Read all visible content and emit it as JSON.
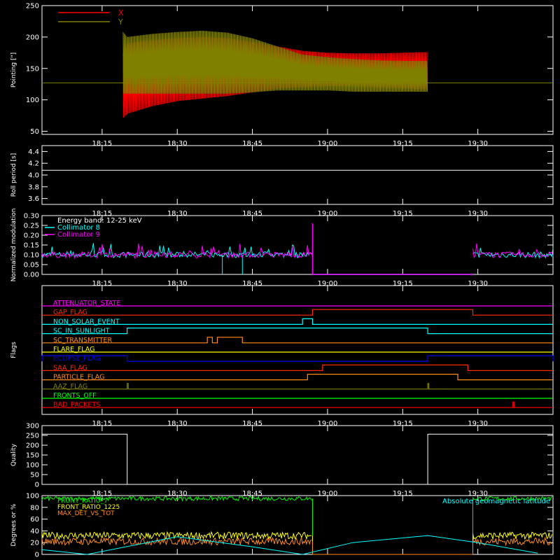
{
  "x_ticks": [
    "18:15",
    "18:30",
    "18:45",
    "19:00",
    "19:15",
    "19:30"
  ],
  "chart_data": [
    {
      "type": "line",
      "ylabel": "Pointing [\"]",
      "yticks": [
        "50",
        "100",
        "150",
        "200",
        "250"
      ],
      "ylim": [
        45,
        250
      ],
      "xlim": [
        "18:03",
        "19:45"
      ],
      "legend": [
        "X",
        "Y"
      ],
      "colors": {
        "X": "#ff0000",
        "Y": "#808000"
      },
      "series": [
        {
          "name": "X",
          "x": [
            "18:19",
            "18:20",
            "18:25",
            "18:30",
            "18:35",
            "18:40",
            "18:45",
            "18:50",
            "18:55",
            "19:00",
            "19:05",
            "19:10",
            "19:15",
            "19:20"
          ],
          "upper": [
            170,
            190,
            195,
            198,
            200,
            198,
            192,
            185,
            178,
            175,
            174,
            174,
            175,
            176
          ],
          "lower": [
            70,
            78,
            90,
            98,
            102,
            106,
            112,
            118,
            120,
            122,
            122,
            120,
            118,
            117
          ]
        },
        {
          "name": "Y",
          "x": [
            "18:19",
            "18:20",
            "18:25",
            "18:30",
            "18:35",
            "18:40",
            "18:45",
            "18:50",
            "18:55",
            "19:00",
            "19:05",
            "19:10",
            "19:15",
            "19:20"
          ],
          "upper": [
            210,
            200,
            205,
            208,
            210,
            207,
            198,
            185,
            172,
            168,
            165,
            163,
            162,
            162
          ],
          "lower": [
            110,
            110,
            110,
            110,
            110,
            110,
            112,
            115,
            115,
            115,
            113,
            113,
            113,
            113
          ]
        }
      ],
      "reference_y": 127
    },
    {
      "type": "line",
      "ylabel": "Roll period [s]",
      "yticks": [
        "3.6",
        "3.8",
        "4.0",
        "4.2",
        "4.4"
      ],
      "ylim": [
        3.5,
        4.5
      ],
      "series": [
        {
          "x": [
            "18:03",
            "19:45"
          ],
          "y": [
            4.08,
            4.08
          ]
        }
      ]
    },
    {
      "type": "line",
      "ylabel": "Normalized modulation",
      "yticks": [
        "0.00",
        "0.05",
        "0.10",
        "0.15",
        "0.20",
        "0.25",
        "0.30"
      ],
      "ylim": [
        0,
        0.3
      ],
      "legend": [
        "Energy band: 12-25 keV",
        "Collimator 8",
        "Collimator 9"
      ],
      "colors": {
        "Collimator 8": "#00ffff",
        "Collimator 9": "#ff00ff"
      },
      "series": [
        {
          "name": "Collimator 8",
          "mean": 0.1,
          "active": [
            [
              "18:03",
              "18:57"
            ],
            [
              "19:29",
              "19:45"
            ]
          ],
          "dips": [
            "18:39",
            "18:43"
          ]
        },
        {
          "name": "Collimator 9",
          "mean": 0.1,
          "active": [
            [
              "18:03",
              "18:57"
            ],
            [
              "19:29",
              "19:45"
            ]
          ],
          "spike": {
            "x": "18:57",
            "y": 0.26
          }
        }
      ]
    },
    {
      "type": "line",
      "ylabel": "Flags",
      "flags": [
        {
          "label": "ATTENUATOR_STATE",
          "color": "#ff00ff",
          "high": []
        },
        {
          "label": "GAP_FLAG",
          "color": "#ff2a00",
          "high": [
            [
              "18:57",
              "19:29"
            ]
          ]
        },
        {
          "label": "NON_SOLAR_EVENT",
          "color": "#00ffff",
          "high": [
            [
              "18:55",
              "18:57"
            ]
          ]
        },
        {
          "label": "SC_IN_SUNLIGHT",
          "color": "#00ffff",
          "high": [
            [
              "18:20",
              "19:20"
            ]
          ]
        },
        {
          "label": "SC_TRANSMITTER",
          "color": "#ff8c1a",
          "high": [
            [
              "18:36",
              "18:37"
            ],
            [
              "18:38",
              "18:43"
            ]
          ]
        },
        {
          "label": "FLARE_FLAG",
          "color": "#ffff00",
          "high": []
        },
        {
          "label": "ECLIPSE_FLAG",
          "color": "#0000ff",
          "high": [
            [
              "18:03",
              "18:20"
            ],
            [
              "19:20",
              "19:45"
            ]
          ]
        },
        {
          "label": "SAA_FLAG",
          "color": "#ff2a00",
          "high": [
            [
              "18:59",
              "19:28"
            ]
          ]
        },
        {
          "label": "PARTICLE_FLAG",
          "color": "#ff8c1a",
          "high": [
            [
              "18:56",
              "19:26"
            ]
          ]
        },
        {
          "label": "AAZ_FLAG",
          "color": "#808000",
          "high": [
            [
              "18:20",
              "18:20"
            ],
            [
              "19:20",
              "19:20"
            ]
          ]
        },
        {
          "label": "FRONTS_OFF",
          "color": "#00ff00",
          "high": []
        },
        {
          "label": "BAD_PACKETS",
          "color": "#ff0000",
          "high": [
            [
              "19:37",
              "19:37"
            ]
          ]
        }
      ]
    },
    {
      "type": "line",
      "ylabel": "Quality",
      "yticks": [
        "0",
        "50",
        "100",
        "150",
        "200",
        "250",
        "300"
      ],
      "ylim": [
        0,
        300
      ],
      "series": [
        {
          "x": [
            "18:03",
            "18:20",
            "18:20",
            "19:20",
            "19:20",
            "19:45"
          ],
          "y": [
            256,
            256,
            0,
            0,
            256,
            256
          ]
        }
      ]
    },
    {
      "type": "line",
      "ylabel": "Degrees or %",
      "yticks": [
        "0",
        "20",
        "40",
        "60",
        "80",
        "100"
      ],
      "ylim": [
        0,
        100
      ],
      "legend": [
        "FRONT_RATIO_7",
        "FRONT_RATIO_1225",
        "MAX_DET_VS_TOT",
        "Absolute geomagnetic latitude"
      ],
      "colors": {
        "FRONT_RATIO_7": "#00ff00",
        "FRONT_RATIO_1225": "#ffff00",
        "MAX_DET_VS_TOT": "#ff8c1a",
        "Absolute geomagnetic latitude": "#00ffff"
      },
      "series": [
        {
          "name": "FRONT_RATIO_7",
          "mean": 95,
          "active": [
            [
              "18:03",
              "18:57"
            ],
            [
              "19:29",
              "19:45"
            ]
          ]
        },
        {
          "name": "FRONT_RATIO_1225",
          "mean": 32,
          "active": [
            [
              "18:03",
              "18:57"
            ],
            [
              "19:29",
              "19:45"
            ]
          ]
        },
        {
          "name": "MAX_DET_VS_TOT",
          "mean": 22,
          "active": [
            [
              "18:03",
              "18:57"
            ],
            [
              "19:29",
              "19:45"
            ]
          ]
        },
        {
          "name": "Absolute geomagnetic latitude",
          "x": [
            "18:03",
            "18:12",
            "18:30",
            "18:45",
            "18:55",
            "19:05",
            "19:20",
            "19:30",
            "19:42"
          ],
          "y": [
            8,
            0,
            30,
            13,
            0,
            20,
            32,
            20,
            2
          ]
        }
      ]
    }
  ]
}
